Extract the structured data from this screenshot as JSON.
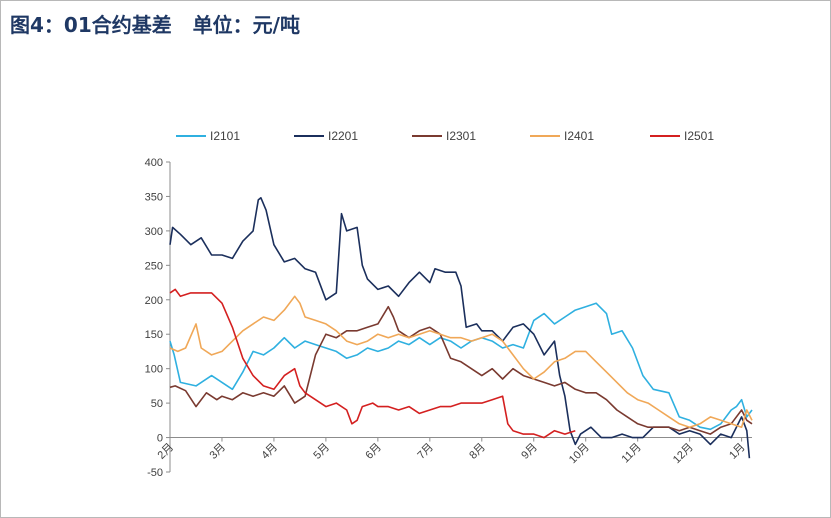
{
  "page": {
    "title": "图4：01合约基差   单位：元/吨"
  },
  "chart_data": {
    "type": "line",
    "title": "",
    "xlabel": "",
    "ylabel": "",
    "ylim": [
      -50,
      400
    ],
    "yticks": [
      -50,
      0,
      50,
      100,
      150,
      200,
      250,
      300,
      350,
      400
    ],
    "x_labels": [
      "2月",
      "3月",
      "4月",
      "5月",
      "6月",
      "7月",
      "8月",
      "9月",
      "10月",
      "11月",
      "12月",
      "1月"
    ],
    "legend_position": "top",
    "grid": false,
    "series": [
      {
        "name": "I2101",
        "color": "#2fb0e0",
        "points": [
          [
            0,
            140
          ],
          [
            0.08,
            120
          ],
          [
            0.2,
            80
          ],
          [
            0.5,
            75
          ],
          [
            0.8,
            90
          ],
          [
            1.0,
            80
          ],
          [
            1.2,
            70
          ],
          [
            1.4,
            95
          ],
          [
            1.6,
            125
          ],
          [
            1.8,
            120
          ],
          [
            2.0,
            130
          ],
          [
            2.2,
            145
          ],
          [
            2.4,
            130
          ],
          [
            2.6,
            140
          ],
          [
            2.8,
            135
          ],
          [
            3.0,
            130
          ],
          [
            3.2,
            125
          ],
          [
            3.4,
            115
          ],
          [
            3.6,
            120
          ],
          [
            3.8,
            130
          ],
          [
            4.0,
            125
          ],
          [
            4.2,
            130
          ],
          [
            4.4,
            140
          ],
          [
            4.6,
            135
          ],
          [
            4.8,
            145
          ],
          [
            5.0,
            135
          ],
          [
            5.2,
            145
          ],
          [
            5.4,
            140
          ],
          [
            5.6,
            130
          ],
          [
            5.8,
            140
          ],
          [
            6.0,
            145
          ],
          [
            6.2,
            140
          ],
          [
            6.4,
            130
          ],
          [
            6.6,
            135
          ],
          [
            6.8,
            130
          ],
          [
            7.0,
            170
          ],
          [
            7.2,
            180
          ],
          [
            7.4,
            165
          ],
          [
            7.6,
            175
          ],
          [
            7.8,
            185
          ],
          [
            8.0,
            190
          ],
          [
            8.2,
            195
          ],
          [
            8.4,
            180
          ],
          [
            8.5,
            150
          ],
          [
            8.7,
            155
          ],
          [
            8.9,
            130
          ],
          [
            9.1,
            90
          ],
          [
            9.3,
            70
          ],
          [
            9.6,
            65
          ],
          [
            9.8,
            30
          ],
          [
            10.0,
            25
          ],
          [
            10.2,
            15
          ],
          [
            10.4,
            12
          ],
          [
            10.6,
            20
          ],
          [
            10.8,
            40
          ],
          [
            10.9,
            45
          ],
          [
            11.0,
            55
          ],
          [
            11.1,
            30
          ],
          [
            11.2,
            40
          ]
        ]
      },
      {
        "name": "I2201",
        "color": "#1b2f5c",
        "points": [
          [
            0,
            280
          ],
          [
            0.05,
            305
          ],
          [
            0.2,
            295
          ],
          [
            0.4,
            280
          ],
          [
            0.6,
            290
          ],
          [
            0.8,
            265
          ],
          [
            1.0,
            265
          ],
          [
            1.2,
            260
          ],
          [
            1.4,
            285
          ],
          [
            1.6,
            300
          ],
          [
            1.7,
            345
          ],
          [
            1.75,
            348
          ],
          [
            1.85,
            330
          ],
          [
            2.0,
            280
          ],
          [
            2.2,
            255
          ],
          [
            2.4,
            260
          ],
          [
            2.6,
            245
          ],
          [
            2.8,
            240
          ],
          [
            3.0,
            200
          ],
          [
            3.2,
            210
          ],
          [
            3.3,
            325
          ],
          [
            3.4,
            300
          ],
          [
            3.6,
            305
          ],
          [
            3.7,
            250
          ],
          [
            3.8,
            230
          ],
          [
            4.0,
            215
          ],
          [
            4.2,
            220
          ],
          [
            4.4,
            205
          ],
          [
            4.6,
            225
          ],
          [
            4.8,
            240
          ],
          [
            5.0,
            225
          ],
          [
            5.1,
            245
          ],
          [
            5.3,
            240
          ],
          [
            5.5,
            240
          ],
          [
            5.6,
            220
          ],
          [
            5.7,
            160
          ],
          [
            5.9,
            165
          ],
          [
            6.0,
            155
          ],
          [
            6.2,
            155
          ],
          [
            6.4,
            140
          ],
          [
            6.6,
            160
          ],
          [
            6.8,
            165
          ],
          [
            7.0,
            150
          ],
          [
            7.2,
            120
          ],
          [
            7.4,
            140
          ],
          [
            7.5,
            90
          ],
          [
            7.6,
            60
          ],
          [
            7.7,
            10
          ],
          [
            7.8,
            -10
          ],
          [
            7.9,
            5
          ],
          [
            8.1,
            15
          ],
          [
            8.3,
            0
          ],
          [
            8.5,
            0
          ],
          [
            8.7,
            5
          ],
          [
            8.9,
            0
          ],
          [
            9.1,
            0
          ],
          [
            9.3,
            15
          ],
          [
            9.6,
            15
          ],
          [
            9.8,
            5
          ],
          [
            10.0,
            10
          ],
          [
            10.2,
            5
          ],
          [
            10.4,
            -10
          ],
          [
            10.6,
            5
          ],
          [
            10.8,
            0
          ],
          [
            11.0,
            30
          ],
          [
            11.1,
            10
          ],
          [
            11.15,
            -30
          ]
        ]
      },
      {
        "name": "I2301",
        "color": "#7a3a30",
        "points": [
          [
            0,
            73
          ],
          [
            0.1,
            75
          ],
          [
            0.3,
            68
          ],
          [
            0.5,
            45
          ],
          [
            0.7,
            65
          ],
          [
            0.9,
            55
          ],
          [
            1.0,
            60
          ],
          [
            1.2,
            55
          ],
          [
            1.4,
            65
          ],
          [
            1.6,
            60
          ],
          [
            1.8,
            65
          ],
          [
            2.0,
            60
          ],
          [
            2.2,
            75
          ],
          [
            2.4,
            50
          ],
          [
            2.5,
            55
          ],
          [
            2.6,
            60
          ],
          [
            2.8,
            120
          ],
          [
            3.0,
            150
          ],
          [
            3.2,
            145
          ],
          [
            3.4,
            155
          ],
          [
            3.6,
            155
          ],
          [
            3.8,
            160
          ],
          [
            4.0,
            165
          ],
          [
            4.2,
            190
          ],
          [
            4.3,
            175
          ],
          [
            4.4,
            155
          ],
          [
            4.6,
            145
          ],
          [
            4.8,
            155
          ],
          [
            5.0,
            160
          ],
          [
            5.2,
            150
          ],
          [
            5.4,
            115
          ],
          [
            5.6,
            110
          ],
          [
            5.8,
            100
          ],
          [
            6.0,
            90
          ],
          [
            6.2,
            100
          ],
          [
            6.4,
            85
          ],
          [
            6.6,
            100
          ],
          [
            6.8,
            90
          ],
          [
            7.0,
            85
          ],
          [
            7.2,
            80
          ],
          [
            7.4,
            75
          ],
          [
            7.6,
            80
          ],
          [
            7.8,
            70
          ],
          [
            8.0,
            65
          ],
          [
            8.2,
            65
          ],
          [
            8.4,
            55
          ],
          [
            8.6,
            40
          ],
          [
            8.8,
            30
          ],
          [
            9.0,
            20
          ],
          [
            9.2,
            15
          ],
          [
            9.4,
            15
          ],
          [
            9.6,
            15
          ],
          [
            9.8,
            10
          ],
          [
            10.0,
            15
          ],
          [
            10.2,
            10
          ],
          [
            10.4,
            5
          ],
          [
            10.6,
            15
          ],
          [
            10.8,
            20
          ],
          [
            11.0,
            40
          ],
          [
            11.1,
            25
          ],
          [
            11.2,
            20
          ]
        ]
      },
      {
        "name": "I2401",
        "color": "#f0a858",
        "points": [
          [
            0,
            130
          ],
          [
            0.15,
            125
          ],
          [
            0.3,
            130
          ],
          [
            0.5,
            165
          ],
          [
            0.6,
            130
          ],
          [
            0.8,
            120
          ],
          [
            1.0,
            125
          ],
          [
            1.2,
            140
          ],
          [
            1.4,
            155
          ],
          [
            1.6,
            165
          ],
          [
            1.8,
            175
          ],
          [
            2.0,
            170
          ],
          [
            2.2,
            185
          ],
          [
            2.4,
            205
          ],
          [
            2.5,
            195
          ],
          [
            2.6,
            175
          ],
          [
            2.8,
            170
          ],
          [
            3.0,
            165
          ],
          [
            3.2,
            155
          ],
          [
            3.4,
            140
          ],
          [
            3.6,
            135
          ],
          [
            3.8,
            140
          ],
          [
            4.0,
            150
          ],
          [
            4.2,
            145
          ],
          [
            4.4,
            150
          ],
          [
            4.6,
            145
          ],
          [
            4.8,
            150
          ],
          [
            5.0,
            155
          ],
          [
            5.2,
            150
          ],
          [
            5.4,
            145
          ],
          [
            5.6,
            145
          ],
          [
            5.8,
            140
          ],
          [
            6.0,
            145
          ],
          [
            6.2,
            150
          ],
          [
            6.4,
            140
          ],
          [
            6.6,
            120
          ],
          [
            6.8,
            100
          ],
          [
            7.0,
            85
          ],
          [
            7.2,
            95
          ],
          [
            7.4,
            110
          ],
          [
            7.6,
            115
          ],
          [
            7.8,
            125
          ],
          [
            8.0,
            125
          ],
          [
            8.2,
            110
          ],
          [
            8.4,
            95
          ],
          [
            8.6,
            80
          ],
          [
            8.8,
            65
          ],
          [
            9.0,
            55
          ],
          [
            9.2,
            50
          ],
          [
            9.4,
            40
          ],
          [
            9.6,
            30
          ],
          [
            9.8,
            20
          ],
          [
            10.0,
            15
          ],
          [
            10.2,
            20
          ],
          [
            10.4,
            30
          ],
          [
            10.6,
            25
          ],
          [
            10.8,
            20
          ],
          [
            11.0,
            15
          ],
          [
            11.1,
            40
          ],
          [
            11.2,
            25
          ]
        ]
      },
      {
        "name": "I2501",
        "color": "#d42020",
        "points": [
          [
            0,
            210
          ],
          [
            0.1,
            215
          ],
          [
            0.2,
            205
          ],
          [
            0.4,
            210
          ],
          [
            0.6,
            210
          ],
          [
            0.8,
            210
          ],
          [
            1.0,
            195
          ],
          [
            1.2,
            160
          ],
          [
            1.4,
            115
          ],
          [
            1.6,
            90
          ],
          [
            1.8,
            75
          ],
          [
            2.0,
            70
          ],
          [
            2.2,
            90
          ],
          [
            2.4,
            100
          ],
          [
            2.5,
            75
          ],
          [
            2.6,
            65
          ],
          [
            2.8,
            55
          ],
          [
            3.0,
            45
          ],
          [
            3.2,
            50
          ],
          [
            3.4,
            40
          ],
          [
            3.5,
            20
          ],
          [
            3.6,
            25
          ],
          [
            3.7,
            45
          ],
          [
            3.9,
            50
          ],
          [
            4.0,
            45
          ],
          [
            4.2,
            45
          ],
          [
            4.4,
            40
          ],
          [
            4.6,
            45
          ],
          [
            4.8,
            35
          ],
          [
            5.0,
            40
          ],
          [
            5.2,
            45
          ],
          [
            5.4,
            45
          ],
          [
            5.6,
            50
          ],
          [
            5.8,
            50
          ],
          [
            6.0,
            50
          ],
          [
            6.2,
            55
          ],
          [
            6.4,
            60
          ],
          [
            6.5,
            20
          ],
          [
            6.6,
            10
          ],
          [
            6.8,
            5
          ],
          [
            7.0,
            5
          ],
          [
            7.2,
            0
          ],
          [
            7.4,
            10
          ],
          [
            7.6,
            5
          ],
          [
            7.8,
            10
          ]
        ]
      }
    ]
  }
}
